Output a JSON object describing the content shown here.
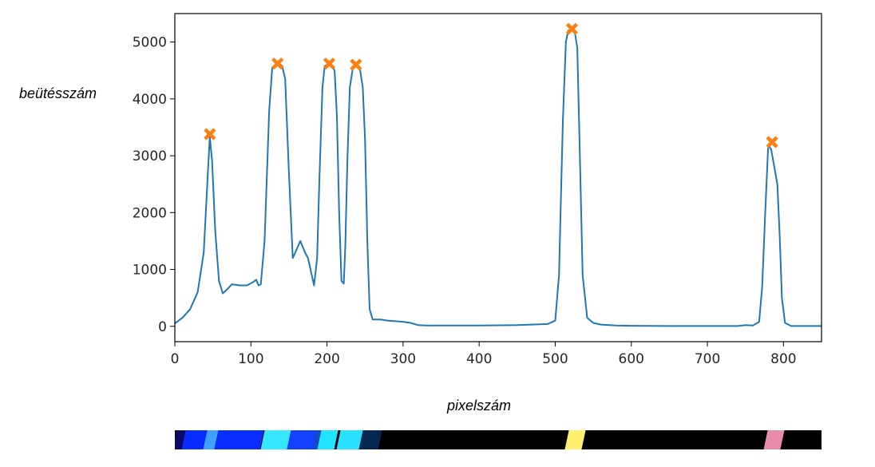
{
  "chart_data": {
    "type": "line",
    "xlabel": "pixelszám",
    "ylabel": "beütésszám",
    "xlim": [
      0,
      850
    ],
    "ylim": [
      -270,
      5500
    ],
    "xticks": [
      0,
      100,
      200,
      300,
      400,
      500,
      600,
      700,
      800
    ],
    "yticks": [
      0,
      1000,
      2000,
      3000,
      4000,
      5000
    ],
    "grid": false,
    "series": [
      {
        "color": "#1f77b4",
        "x": [
          0,
          10,
          20,
          30,
          38,
          43,
          46,
          49,
          53,
          58,
          63,
          68,
          75,
          85,
          95,
          103,
          107,
          110,
          113,
          118,
          124,
          128,
          132,
          137,
          141,
          145,
          150,
          155,
          160,
          165,
          168,
          171,
          175,
          180,
          183,
          187,
          190,
          194,
          197,
          200,
          203,
          206,
          210,
          213,
          216,
          219,
          222,
          224,
          227,
          230,
          234,
          238,
          243,
          247,
          250,
          253,
          256,
          260,
          270,
          280,
          290,
          300,
          310,
          320,
          330,
          340,
          350,
          400,
          450,
          490,
          500,
          505,
          510,
          514,
          517,
          520,
          523,
          526,
          529,
          532,
          536,
          542,
          550,
          560,
          580,
          600,
          650,
          700,
          740,
          750,
          760,
          768,
          772,
          776,
          780,
          784,
          788,
          792,
          795,
          798,
          802,
          810,
          850
        ],
        "values": [
          50,
          150,
          300,
          600,
          1300,
          2600,
          3330,
          2900,
          1700,
          800,
          580,
          640,
          740,
          720,
          720,
          780,
          820,
          720,
          740,
          1500,
          3800,
          4550,
          4600,
          4620,
          4580,
          4350,
          2700,
          1200,
          1350,
          1500,
          1400,
          1300,
          1200,
          900,
          720,
          1200,
          2600,
          4200,
          4580,
          4600,
          4620,
          4600,
          4500,
          3700,
          2000,
          800,
          750,
          1400,
          3000,
          4200,
          4550,
          4600,
          4550,
          4200,
          3300,
          1500,
          300,
          120,
          120,
          100,
          90,
          80,
          60,
          20,
          15,
          15,
          15,
          15,
          20,
          40,
          100,
          900,
          3600,
          5000,
          5200,
          5220,
          5200,
          5150,
          4900,
          3200,
          900,
          150,
          60,
          30,
          15,
          10,
          5,
          5,
          5,
          20,
          15,
          80,
          700,
          2000,
          3200,
          3100,
          2800,
          2500,
          1600,
          500,
          60,
          5,
          5
        ]
      }
    ],
    "peaks": {
      "color": "#ff7f0e",
      "x": [
        46,
        135,
        203,
        238,
        522,
        785
      ],
      "values": [
        3380,
        4620,
        4620,
        4600,
        5230,
        3240
      ]
    },
    "spectrum_bands": [
      {
        "x": 0,
        "w": 12,
        "color": "#0a0a66"
      },
      {
        "x": 12,
        "w": 28,
        "color": "#0a2bff"
      },
      {
        "x": 40,
        "w": 15,
        "color": "#3fa0ff"
      },
      {
        "x": 55,
        "w": 60,
        "color": "#0a2cff"
      },
      {
        "x": 115,
        "w": 35,
        "color": "#36e8ff"
      },
      {
        "x": 150,
        "w": 35,
        "color": "#1540ff"
      },
      {
        "x": 185,
        "w": 25,
        "color": "#1050c0"
      },
      {
        "x": 190,
        "w": 22,
        "color": "#20e4ff"
      },
      {
        "x": 215,
        "w": 30,
        "color": "#28e0ff"
      },
      {
        "x": 245,
        "w": 25,
        "color": "#062850"
      },
      {
        "x": 515,
        "w": 22,
        "color": "#fff070"
      },
      {
        "x": 777,
        "w": 22,
        "color": "#e88aa8"
      }
    ]
  }
}
